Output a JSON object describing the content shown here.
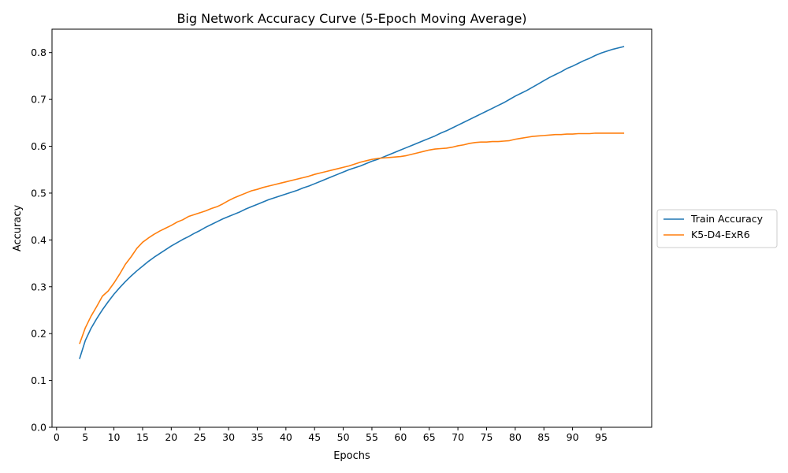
{
  "chart_data": {
    "type": "line",
    "title": "Big Network Accuracy Curve (5-Epoch Moving Average)",
    "xlabel": "Epochs",
    "ylabel": "Accuracy",
    "xlim": [
      -0.8,
      103.8
    ],
    "ylim": [
      0.0,
      0.85
    ],
    "x_ticks": [
      0,
      5,
      10,
      15,
      20,
      25,
      30,
      35,
      40,
      45,
      50,
      55,
      60,
      65,
      70,
      75,
      80,
      85,
      90,
      95
    ],
    "x_tick_labels": [
      "0",
      "5",
      "10",
      "15",
      "20",
      "25",
      "30",
      "35",
      "40",
      "45",
      "50",
      "55",
      "60",
      "65",
      "70",
      "75",
      "80",
      "85",
      "90",
      "95"
    ],
    "y_ticks": [
      0.0,
      0.1,
      0.2,
      0.3,
      0.4,
      0.5,
      0.6,
      0.7,
      0.8
    ],
    "y_tick_labels": [
      "0.0",
      "0.1",
      "0.2",
      "0.3",
      "0.4",
      "0.5",
      "0.6",
      "0.7",
      "0.8"
    ],
    "grid": false,
    "legend_position": "right-outside",
    "x": [
      4,
      5,
      6,
      7,
      8,
      9,
      10,
      11,
      12,
      13,
      14,
      15,
      16,
      17,
      18,
      19,
      20,
      21,
      22,
      23,
      24,
      25,
      26,
      27,
      28,
      29,
      30,
      31,
      32,
      33,
      34,
      35,
      36,
      37,
      38,
      39,
      40,
      41,
      42,
      43,
      44,
      45,
      46,
      47,
      48,
      49,
      50,
      51,
      52,
      53,
      54,
      55,
      56,
      57,
      58,
      59,
      60,
      61,
      62,
      63,
      64,
      65,
      66,
      67,
      68,
      69,
      70,
      71,
      72,
      73,
      74,
      75,
      76,
      77,
      78,
      79,
      80,
      81,
      82,
      83,
      84,
      85,
      86,
      87,
      88,
      89,
      90,
      91,
      92,
      93,
      94,
      95,
      96,
      97,
      98,
      99
    ],
    "series": [
      {
        "name": "Train Accuracy",
        "color": "#1f77b4",
        "values": [
          0.146,
          0.185,
          0.211,
          0.232,
          0.251,
          0.268,
          0.284,
          0.298,
          0.311,
          0.323,
          0.334,
          0.344,
          0.354,
          0.363,
          0.371,
          0.379,
          0.387,
          0.394,
          0.401,
          0.407,
          0.414,
          0.42,
          0.427,
          0.433,
          0.439,
          0.445,
          0.45,
          0.455,
          0.46,
          0.466,
          0.471,
          0.476,
          0.481,
          0.486,
          0.49,
          0.494,
          0.498,
          0.502,
          0.506,
          0.511,
          0.515,
          0.52,
          0.525,
          0.53,
          0.535,
          0.54,
          0.545,
          0.55,
          0.554,
          0.558,
          0.563,
          0.568,
          0.572,
          0.577,
          0.582,
          0.587,
          0.592,
          0.597,
          0.602,
          0.607,
          0.612,
          0.617,
          0.622,
          0.628,
          0.633,
          0.639,
          0.645,
          0.651,
          0.657,
          0.663,
          0.669,
          0.675,
          0.681,
          0.687,
          0.693,
          0.7,
          0.707,
          0.713,
          0.719,
          0.726,
          0.733,
          0.74,
          0.747,
          0.753,
          0.759,
          0.766,
          0.771,
          0.777,
          0.783,
          0.788,
          0.794,
          0.799,
          0.803,
          0.807,
          0.81,
          0.813
        ]
      },
      {
        "name": "K5-D4-ExR6",
        "color": "#ff7f0e",
        "values": [
          0.178,
          0.212,
          0.237,
          0.258,
          0.28,
          0.291,
          0.308,
          0.327,
          0.348,
          0.364,
          0.382,
          0.395,
          0.404,
          0.412,
          0.419,
          0.425,
          0.431,
          0.438,
          0.443,
          0.45,
          0.454,
          0.458,
          0.462,
          0.467,
          0.471,
          0.477,
          0.484,
          0.49,
          0.495,
          0.5,
          0.505,
          0.508,
          0.512,
          0.515,
          0.518,
          0.521,
          0.524,
          0.527,
          0.53,
          0.533,
          0.536,
          0.54,
          0.543,
          0.546,
          0.549,
          0.552,
          0.555,
          0.558,
          0.562,
          0.566,
          0.569,
          0.572,
          0.574,
          0.575,
          0.576,
          0.577,
          0.578,
          0.58,
          0.583,
          0.586,
          0.589,
          0.592,
          0.594,
          0.595,
          0.596,
          0.598,
          0.601,
          0.603,
          0.606,
          0.608,
          0.609,
          0.609,
          0.61,
          0.61,
          0.611,
          0.612,
          0.615,
          0.617,
          0.619,
          0.621,
          0.622,
          0.623,
          0.624,
          0.625,
          0.625,
          0.626,
          0.626,
          0.627,
          0.627,
          0.627,
          0.628,
          0.628,
          0.628,
          0.628,
          0.628,
          0.628
        ]
      }
    ]
  }
}
